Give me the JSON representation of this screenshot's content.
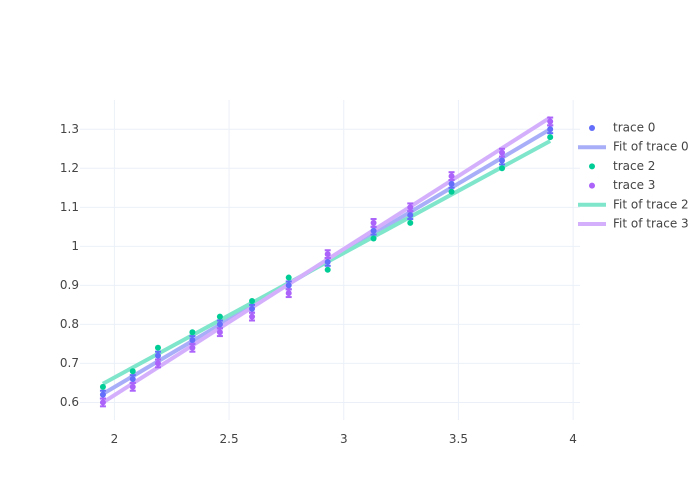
{
  "chart_data": {
    "type": "scatter",
    "title": "",
    "xlabel": "",
    "ylabel": "",
    "xlim": [
      1.85,
      4.03
    ],
    "ylim": [
      0.555,
      1.375
    ],
    "xticks": [
      2,
      2.5,
      3,
      3.5,
      4
    ],
    "xtick_labels": [
      "2",
      "2.5",
      "3",
      "3.5",
      "4"
    ],
    "yticks": [
      0.6,
      0.7,
      0.8,
      0.9,
      1,
      1.1,
      1.2,
      1.3
    ],
    "ytick_labels": [
      "0.6",
      "0.7",
      "0.8",
      "0.9",
      "1",
      "1.1",
      "1.2",
      "1.3"
    ],
    "grid": true,
    "legend_position": "right",
    "series": [
      {
        "name": "trace 0",
        "kind": "markers",
        "color": "#636efa",
        "x": [
          1.95,
          2.08,
          2.19,
          2.34,
          2.46,
          2.6,
          2.76,
          2.93,
          3.13,
          3.29,
          3.47,
          3.69,
          3.9
        ],
        "y": [
          0.62,
          0.66,
          0.72,
          0.76,
          0.8,
          0.84,
          0.9,
          0.96,
          1.04,
          1.08,
          1.16,
          1.22,
          1.3
        ],
        "error_y": 0.01
      },
      {
        "name": "Fit of trace 0",
        "kind": "line",
        "color": "#a9aef9",
        "x": [
          1.95,
          3.9
        ],
        "y": [
          0.622,
          1.3
        ]
      },
      {
        "name": "trace 2",
        "kind": "markers",
        "color": "#00cc96",
        "x": [
          1.95,
          2.08,
          2.19,
          2.34,
          2.46,
          2.6,
          2.76,
          2.93,
          3.13,
          3.29,
          3.47,
          3.69,
          3.9
        ],
        "y": [
          0.64,
          0.68,
          0.74,
          0.78,
          0.82,
          0.86,
          0.92,
          0.94,
          1.02,
          1.06,
          1.14,
          1.2,
          1.28
        ],
        "error_y": 0.0
      },
      {
        "name": "trace 3",
        "kind": "markers",
        "color": "#ab63fa",
        "x": [
          1.95,
          2.08,
          2.19,
          2.34,
          2.46,
          2.6,
          2.76,
          2.93,
          3.13,
          3.29,
          3.47,
          3.69,
          3.9
        ],
        "y": [
          0.6,
          0.64,
          0.7,
          0.74,
          0.78,
          0.82,
          0.88,
          0.98,
          1.06,
          1.1,
          1.18,
          1.24,
          1.32
        ],
        "error_y": 0.01
      },
      {
        "name": "Fit of trace 2",
        "kind": "line",
        "color": "#7fe5cb",
        "x": [
          1.95,
          3.9
        ],
        "y": [
          0.648,
          1.27
        ]
      },
      {
        "name": "Fit of trace 3",
        "kind": "line",
        "color": "#d4b0fc",
        "x": [
          1.95,
          3.9
        ],
        "y": [
          0.6,
          1.33
        ]
      }
    ]
  }
}
